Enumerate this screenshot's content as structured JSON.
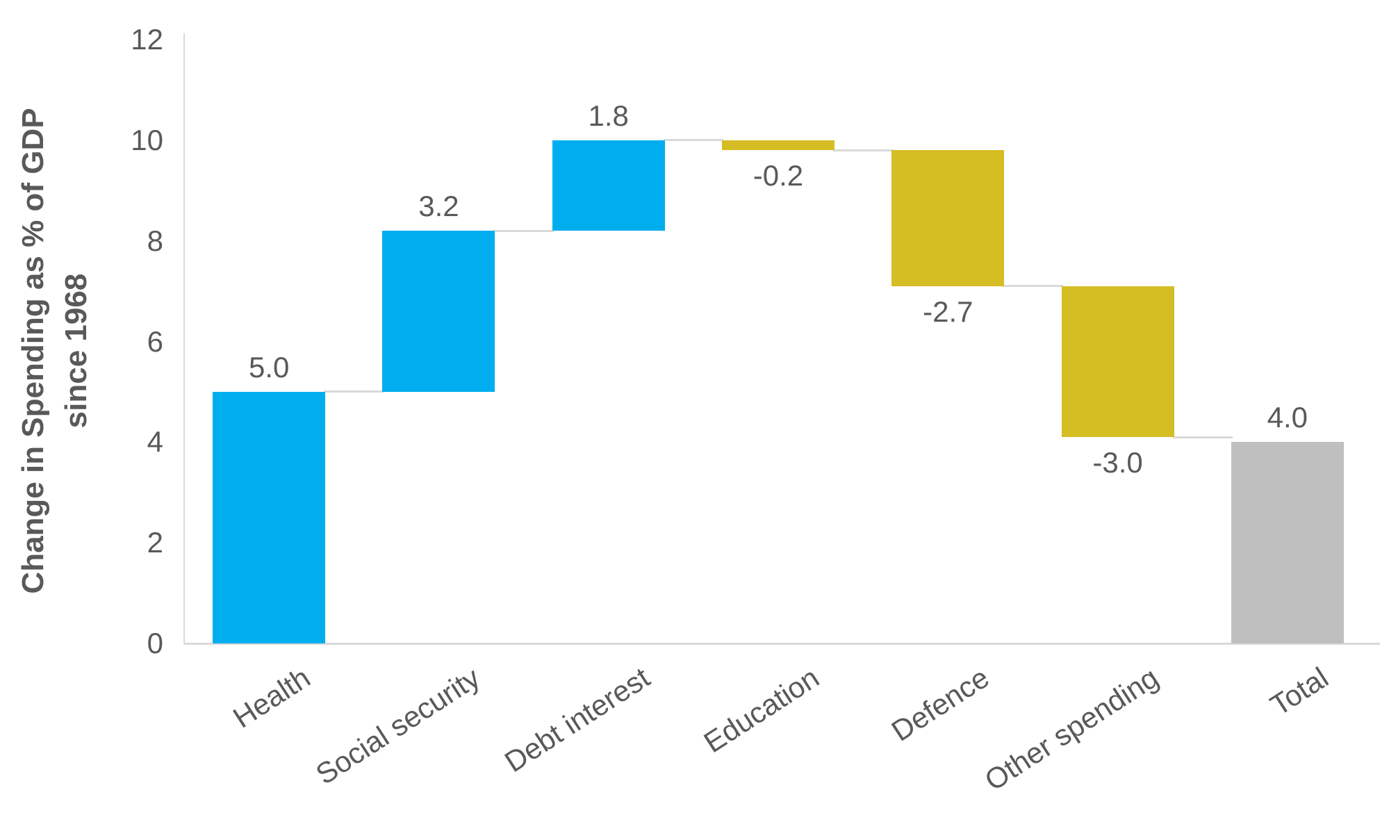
{
  "chart_data": {
    "type": "bar",
    "subtype": "waterfall",
    "ylabel": "Change in Spending as % of GDP since 1968",
    "ylabel_lines": {
      "line1": "Change in Spending as % of GDP",
      "line2": "since 1968"
    },
    "categories": [
      "Health",
      "Social security",
      "Debt interest",
      "Education",
      "Defence",
      "Other spending",
      "Total"
    ],
    "values": [
      5.0,
      3.2,
      1.8,
      -0.2,
      -2.7,
      -3.0,
      4.0
    ],
    "value_labels": [
      "5.0",
      "3.2",
      "1.8",
      "-0.2",
      "-2.7",
      "-3.0",
      "4.0"
    ],
    "bar_types": [
      "increase",
      "increase",
      "increase",
      "decrease",
      "decrease",
      "decrease",
      "total"
    ],
    "cumulative_start": [
      0,
      5.0,
      8.2,
      10.0,
      9.8,
      7.1,
      0
    ],
    "cumulative_end": [
      5.0,
      8.2,
      10.0,
      9.8,
      7.1,
      4.1,
      4.0
    ],
    "y_ticks": [
      "0",
      "2",
      "4",
      "6",
      "8",
      "10",
      "12"
    ],
    "y_tick_values": [
      0,
      2,
      4,
      6,
      8,
      10,
      12
    ],
    "ylim": [
      0,
      12
    ],
    "grid": false,
    "legend": false,
    "colors": {
      "increase": "#00AEEF",
      "decrease": "#D5BD24",
      "total": "#BFBFBF",
      "axis_line": "#D9D9D9",
      "connector": "#D9D9D9",
      "text": "#595959"
    }
  }
}
